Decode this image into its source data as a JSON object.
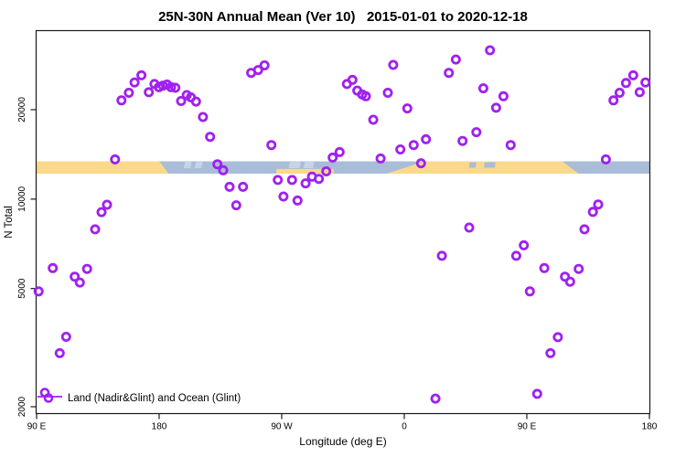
{
  "title": "25N-30N Annual Mean (Ver 10)   2015-01-01 to 2020-12-18",
  "legend": {
    "label": "Land (Nadir&Glint) and Ocean (Glint)"
  },
  "colors": {
    "marker": "#A020F0",
    "land": "#FBD98B",
    "ocean": "#A9BDD9",
    "ocean_light": "#C6D4E6",
    "axis": "#1a1a1a"
  },
  "chart_data": {
    "type": "scatter",
    "title": "25N-30N Annual Mean (Ver 10)   2015-01-01 to 2020-12-18",
    "xlabel": "Longitude (deg E)",
    "ylabel": "N Total",
    "x_axis": {
      "range": [
        90,
        540
      ],
      "ticks": [
        {
          "pos": 90,
          "label": "90 E"
        },
        {
          "pos": 180,
          "label": "180"
        },
        {
          "pos": 270,
          "label": "90 W"
        },
        {
          "pos": 360,
          "label": "0"
        },
        {
          "pos": 450,
          "label": "90 E"
        },
        {
          "pos": 540,
          "label": "180"
        }
      ]
    },
    "y_axis": {
      "scale": "log",
      "range": [
        1860,
        35500
      ],
      "ticks": [
        {
          "value": 2000,
          "label": "2000"
        },
        {
          "value": 5000,
          "label": "5000"
        },
        {
          "value": 10000,
          "label": "10000"
        },
        {
          "value": 20000,
          "label": "20000"
        }
      ]
    },
    "legend_position": "bottom-left",
    "grid": false,
    "series": [
      {
        "name": "Land (Nadir&Glint) and Ocean (Glint)",
        "marker": "open-circle",
        "color": "#A020F0",
        "points": [
          [
            152.3,
            21500
          ],
          [
            157.8,
            22800
          ],
          [
            161.9,
            24700
          ],
          [
            167,
            26100
          ],
          [
            172.4,
            22900
          ],
          [
            176.6,
            24400
          ],
          [
            179.8,
            23800
          ],
          [
            182.7,
            24100
          ],
          [
            185.8,
            24300
          ],
          [
            188.7,
            23800
          ],
          [
            191.9,
            23700
          ],
          [
            196.1,
            21400
          ],
          [
            200.3,
            22400
          ],
          [
            203.3,
            22000
          ],
          [
            207.1,
            21300
          ],
          [
            212.2,
            18900
          ],
          [
            217.4,
            16200
          ],
          [
            147.6,
            13600
          ],
          [
            222.8,
            13100
          ],
          [
            227,
            12500
          ],
          [
            231.7,
            11000
          ],
          [
            241.6,
            11000
          ],
          [
            236.6,
            9530
          ],
          [
            141.7,
            9570
          ],
          [
            137.7,
            9040
          ],
          [
            133,
            7910
          ],
          [
            247.6,
            26600
          ],
          [
            252.7,
            27200
          ],
          [
            257.4,
            28200
          ],
          [
            317.9,
            24400
          ],
          [
            321.9,
            25200
          ],
          [
            325.5,
            23200
          ],
          [
            329.1,
            22500
          ],
          [
            331.8,
            22200
          ],
          [
            347.9,
            22800
          ],
          [
            351.9,
            28300
          ],
          [
            362.2,
            20200
          ],
          [
            337.2,
            18500
          ],
          [
            262.4,
            15200
          ],
          [
            307.4,
            13800
          ],
          [
            312.5,
            14400
          ],
          [
            342.6,
            13700
          ],
          [
            357.1,
            14700
          ],
          [
            366.9,
            15200
          ],
          [
            375.9,
            15900
          ],
          [
            372.3,
            13200
          ],
          [
            267.1,
            11600
          ],
          [
            277.6,
            11600
          ],
          [
            287.5,
            11300
          ],
          [
            292.2,
            11900
          ],
          [
            297.3,
            11700
          ],
          [
            302.7,
            12400
          ],
          [
            271.3,
            10200
          ],
          [
            281.6,
            9890
          ],
          [
            422.9,
            31700
          ],
          [
            397.9,
            29500
          ],
          [
            392.7,
            26600
          ],
          [
            418,
            23600
          ],
          [
            432.8,
            22200
          ],
          [
            427.4,
            20300
          ],
          [
            412.9,
            16800
          ],
          [
            402.8,
            15700
          ],
          [
            438.1,
            15200
          ],
          [
            508,
            13600
          ],
          [
            513.6,
            21500
          ],
          [
            518.1,
            22800
          ],
          [
            522.8,
            24600
          ],
          [
            528.1,
            26100
          ],
          [
            537.1,
            24700
          ],
          [
            532.9,
            22900
          ],
          [
            498.5,
            9060
          ],
          [
            502.4,
            9590
          ],
          [
            407.7,
            8020
          ],
          [
            492.3,
            7910
          ],
          [
            447.8,
            6990
          ],
          [
            442.2,
            6440
          ],
          [
            387.6,
            6440
          ],
          [
            462.8,
            5860
          ],
          [
            488.1,
            5820
          ],
          [
            478,
            5480
          ],
          [
            481.8,
            5270
          ],
          [
            452.2,
            4890
          ],
          [
            472.8,
            3430
          ],
          [
            467.3,
            3030
          ],
          [
            457.6,
            2210
          ],
          [
            101.9,
            5860
          ],
          [
            118,
            5480
          ],
          [
            121.8,
            5240
          ],
          [
            127.1,
            5820
          ],
          [
            91.5,
            4890
          ],
          [
            111.7,
            3440
          ],
          [
            107,
            3030
          ],
          [
            382.9,
            2130
          ]
        ]
      }
    ],
    "map_band": {
      "description": "25N-30N latitude strip map drawn across the plot; land=orange, ocean=blue-gray",
      "center_value": 12800,
      "land_polygons": [
        {
          "top_from": 90,
          "top_to": 180,
          "bottom_from": 90,
          "bottom_to": 187
        },
        {
          "type": "bottom_strip",
          "from": 266,
          "to": 308,
          "height_frac": 0.38
        },
        {
          "top_from": 375,
          "top_to": 476,
          "bottom_from": 347,
          "bottom_to": 488
        }
      ],
      "ocean_flecks": [
        {
          "from": 408,
          "to": 413
        },
        {
          "from": 419,
          "to": 427
        }
      ],
      "light_streaks": [
        {
          "from": 199,
          "to": 204
        },
        {
          "from": 207,
          "to": 212
        },
        {
          "from": 276,
          "to": 284
        },
        {
          "from": 287,
          "to": 294
        }
      ]
    }
  }
}
